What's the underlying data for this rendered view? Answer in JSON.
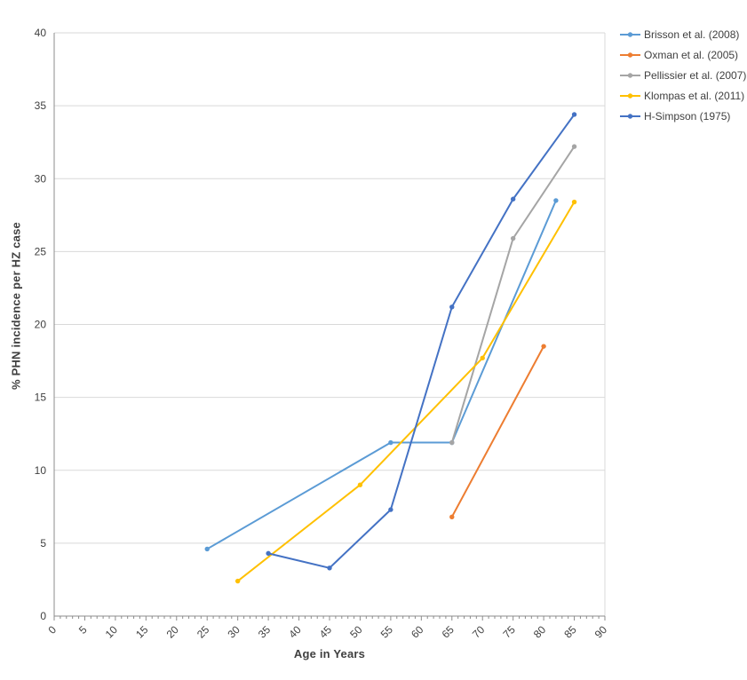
{
  "chart_data": {
    "type": "line",
    "title": "",
    "xlabel": "Age in Years",
    "ylabel": "% PHN incidence per HZ case",
    "xlim": [
      0,
      90
    ],
    "ylim": [
      0,
      40
    ],
    "x_tick_step": 5,
    "x_minor_tick_step": 1,
    "y_tick_step": 5,
    "grid": "horizontal",
    "legend_position": "top-right",
    "colors": {
      "axis_line": "#8C8C8C",
      "gridline": "#D9D9D9",
      "plot_border": "#D9D9D9",
      "tick_label": "#404040",
      "legend_label": "#404040"
    },
    "series": [
      {
        "name": "Brisson et al. (2008)",
        "color": "#5B9BD5",
        "points": [
          [
            25,
            4.6
          ],
          [
            55,
            11.9
          ],
          [
            65,
            11.9
          ],
          [
            82,
            28.5
          ]
        ]
      },
      {
        "name": "Oxman et al. (2005)",
        "color": "#ED7D31",
        "points": [
          [
            65,
            6.8
          ],
          [
            80,
            18.5
          ]
        ]
      },
      {
        "name": "Pellissier et al. (2007)",
        "color": "#A5A5A5",
        "points": [
          [
            65,
            11.9
          ],
          [
            75,
            25.9
          ],
          [
            85,
            32.2
          ]
        ]
      },
      {
        "name": "Klompas et al. (2011)",
        "color": "#FFC000",
        "points": [
          [
            30,
            2.4
          ],
          [
            50,
            9.0
          ],
          [
            70,
            17.7
          ],
          [
            85,
            28.4
          ]
        ]
      },
      {
        "name": "H-Simpson (1975)",
        "color": "#4472C4",
        "points": [
          [
            35,
            4.3
          ],
          [
            45,
            3.3
          ],
          [
            55,
            7.3
          ],
          [
            65,
            21.2
          ],
          [
            75,
            28.6
          ],
          [
            85,
            34.4
          ]
        ]
      }
    ]
  }
}
